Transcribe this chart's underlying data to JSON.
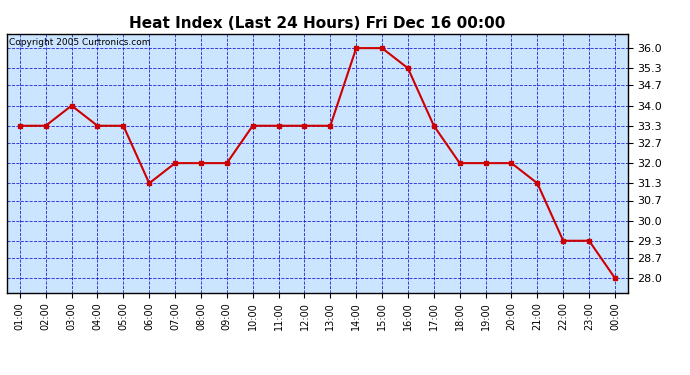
{
  "title": "Heat Index (Last 24 Hours) Fri Dec 16 00:00",
  "copyright": "Copyright 2005 Curtronics.com",
  "x_labels": [
    "01:00",
    "02:00",
    "03:00",
    "04:00",
    "05:00",
    "06:00",
    "07:00",
    "08:00",
    "09:00",
    "10:00",
    "11:00",
    "12:00",
    "13:00",
    "14:00",
    "15:00",
    "16:00",
    "17:00",
    "18:00",
    "19:00",
    "20:00",
    "21:00",
    "22:00",
    "23:00",
    "00:00"
  ],
  "y_values": [
    33.3,
    33.3,
    34.0,
    33.3,
    33.3,
    31.3,
    32.0,
    32.0,
    32.0,
    33.3,
    33.3,
    33.3,
    33.3,
    36.0,
    36.0,
    35.3,
    33.3,
    32.0,
    32.0,
    32.0,
    31.3,
    29.3,
    29.3,
    28.0
  ],
  "line_color": "#cc0000",
  "marker_color": "#cc0000",
  "bg_color": "#cce5ff",
  "grid_color": "#0000cc",
  "title_fontsize": 11,
  "ylabel_fontsize": 8,
  "xlabel_fontsize": 7,
  "copyright_fontsize": 6.5,
  "ylim": [
    27.5,
    36.5
  ],
  "yticks": [
    28.0,
    28.7,
    29.3,
    30.0,
    30.7,
    31.3,
    32.0,
    32.7,
    33.3,
    34.0,
    34.7,
    35.3,
    36.0
  ]
}
